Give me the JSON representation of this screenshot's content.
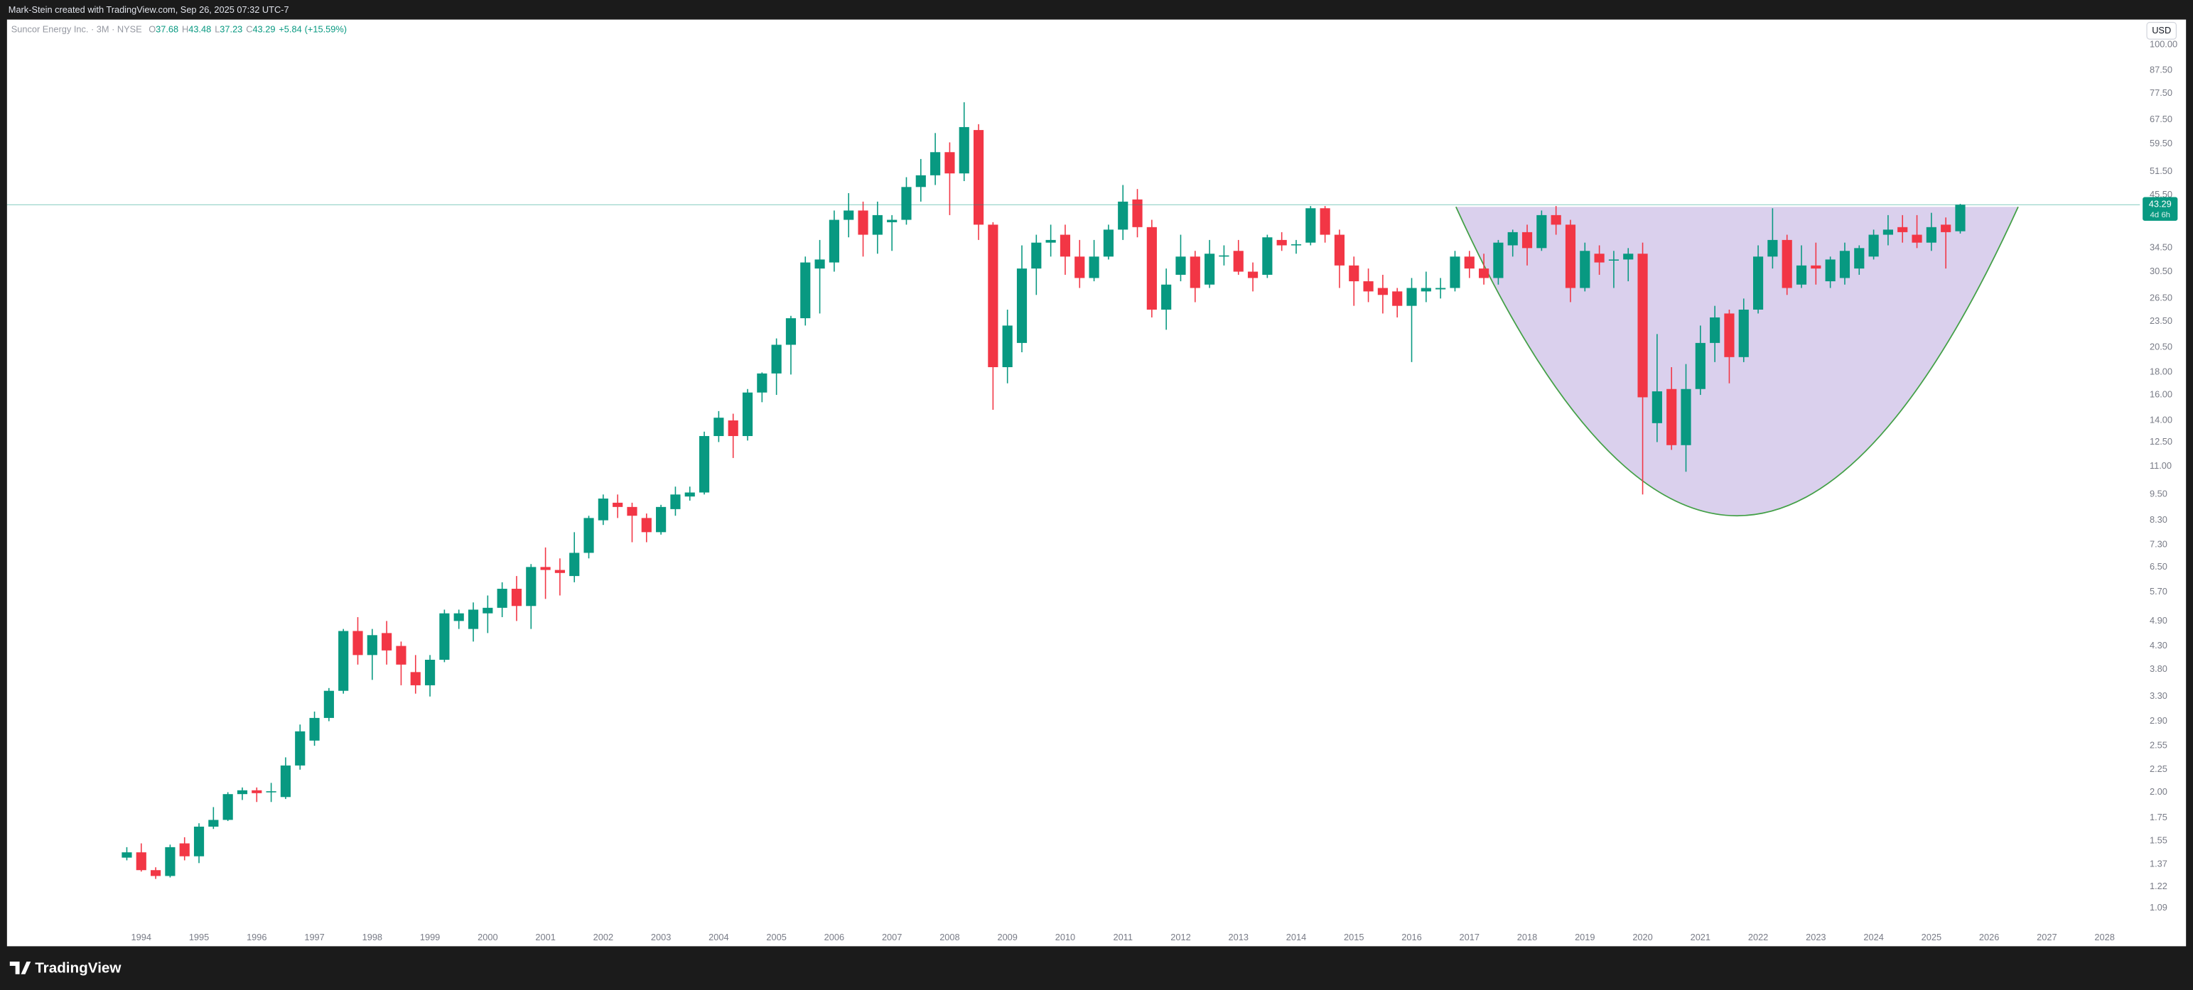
{
  "header": "Mark-Stein created with TradingView.com, Sep 26, 2025 07:32 UTC-7",
  "footer_logo": "TradingView",
  "chart_data": {
    "type": "candlestick",
    "title": "Suncor Energy Inc. · 3M · NYSE",
    "legend_values": [
      {
        "prefix": "O",
        "value": 37.68
      },
      {
        "prefix": "H",
        "value": 43.48
      },
      {
        "prefix": "L",
        "value": 37.23
      },
      {
        "prefix": "C",
        "value": 43.29
      }
    ],
    "change": {
      "value": 5.84,
      "label": "+5.84"
    },
    "change_percent": {
      "value": 15.59,
      "label": "(+15.59%)"
    },
    "currency": "USD",
    "last_price": 43.29,
    "countdown": "4d 6h",
    "up_color": "#089981",
    "down_color": "#f23645",
    "log_scale": true,
    "grid": false,
    "xlim": [
      1991.675,
      2028.61
    ],
    "xticks": [
      1994,
      1995,
      1996,
      1997,
      1998,
      1999,
      2000,
      2001,
      2002,
      2003,
      2004,
      2005,
      2006,
      2007,
      2008,
      2009,
      2010,
      2011,
      2012,
      2013,
      2014,
      2015,
      2016,
      2017,
      2018,
      2019,
      2020,
      2021,
      2022,
      2023,
      2024,
      2025,
      2026,
      2027,
      2028
    ],
    "ylim": [
      0.893,
      114.1
    ],
    "yticks": [
      {
        "value": 100,
        "label": "100.00"
      },
      {
        "value": 87.5,
        "label": "87.50"
      },
      {
        "value": 77.5,
        "label": "77.50"
      },
      {
        "value": 67.5,
        "label": "67.50"
      },
      {
        "value": 59.5,
        "label": "59.50"
      },
      {
        "value": 51.5,
        "label": "51.50"
      },
      {
        "value": 45.5,
        "label": "45.50"
      },
      {
        "value": 34.5,
        "label": "34.50"
      },
      {
        "value": 30.5,
        "label": "30.50"
      },
      {
        "value": 26.5,
        "label": "26.50"
      },
      {
        "value": 23.5,
        "label": "23.50"
      },
      {
        "value": 20.5,
        "label": "20.50"
      },
      {
        "value": 18,
        "label": "18.00"
      },
      {
        "value": 16,
        "label": "16.00"
      },
      {
        "value": 14,
        "label": "14.00"
      },
      {
        "value": 12.5,
        "label": "12.50"
      },
      {
        "value": 11,
        "label": "11.00"
      },
      {
        "value": 9.5,
        "label": "9.50"
      },
      {
        "value": 8.3,
        "label": "8.30"
      },
      {
        "value": 7.3,
        "label": "7.30"
      },
      {
        "value": 6.5,
        "label": "6.50"
      },
      {
        "value": 5.7,
        "label": "5.70"
      },
      {
        "value": 4.9,
        "label": "4.90"
      },
      {
        "value": 4.3,
        "label": "4.30"
      },
      {
        "value": 3.8,
        "label": "3.80"
      },
      {
        "value": 3.3,
        "label": "3.30"
      },
      {
        "value": 2.9,
        "label": "2.90"
      },
      2.55,
      2.25,
      {
        "value": 2,
        "label": "2.00"
      },
      1.75,
      1.55,
      1.37,
      1.22,
      1.09
    ],
    "ohlc": [
      [
        1993.75,
        1.42,
        1.5,
        1.4,
        1.46
      ],
      [
        1994.0,
        1.46,
        1.53,
        1.32,
        1.33
      ],
      [
        1994.25,
        1.33,
        1.35,
        1.27,
        1.29
      ],
      [
        1994.5,
        1.29,
        1.52,
        1.28,
        1.5
      ],
      [
        1994.75,
        1.53,
        1.58,
        1.4,
        1.43
      ],
      [
        1995.0,
        1.43,
        1.7,
        1.38,
        1.67
      ],
      [
        1995.25,
        1.67,
        1.85,
        1.65,
        1.73
      ],
      [
        1995.5,
        1.73,
        2.0,
        1.72,
        1.98
      ],
      [
        1995.75,
        1.98,
        2.05,
        1.92,
        2.02
      ],
      [
        1996.0,
        2.02,
        2.05,
        1.9,
        1.99
      ],
      [
        1996.25,
        2.0,
        2.1,
        1.9,
        2.01
      ],
      [
        1996.5,
        1.95,
        2.4,
        1.93,
        2.3
      ],
      [
        1996.75,
        2.3,
        2.85,
        2.25,
        2.75
      ],
      [
        1997.0,
        2.62,
        3.05,
        2.55,
        2.95
      ],
      [
        1997.25,
        2.95,
        3.45,
        2.9,
        3.4
      ],
      [
        1997.5,
        3.4,
        4.7,
        3.35,
        4.65
      ],
      [
        1997.75,
        4.65,
        5.0,
        3.9,
        4.1
      ],
      [
        1998.0,
        4.1,
        4.7,
        3.6,
        4.55
      ],
      [
        1998.25,
        4.6,
        4.9,
        3.9,
        4.2
      ],
      [
        1998.5,
        4.3,
        4.4,
        3.5,
        3.9
      ],
      [
        1998.75,
        3.75,
        4.1,
        3.35,
        3.5
      ],
      [
        1999.0,
        3.5,
        4.1,
        3.3,
        4.0
      ],
      [
        1999.25,
        4.0,
        5.2,
        3.95,
        5.1
      ],
      [
        1999.5,
        4.9,
        5.2,
        4.7,
        5.1
      ],
      [
        1999.75,
        4.7,
        5.4,
        4.4,
        5.2
      ],
      [
        2000.0,
        5.1,
        5.6,
        4.6,
        5.25
      ],
      [
        2000.25,
        5.25,
        6.0,
        5.0,
        5.8
      ],
      [
        2000.5,
        5.8,
        6.2,
        4.9,
        5.3
      ],
      [
        2000.75,
        5.3,
        6.6,
        4.7,
        6.5
      ],
      [
        2001.0,
        6.5,
        7.2,
        5.5,
        6.4
      ],
      [
        2001.25,
        6.4,
        6.8,
        5.6,
        6.3
      ],
      [
        2001.5,
        6.2,
        7.8,
        6.0,
        7.0
      ],
      [
        2001.75,
        7.0,
        8.5,
        6.8,
        8.4
      ],
      [
        2002.0,
        8.3,
        9.5,
        8.1,
        9.3
      ],
      [
        2002.25,
        9.1,
        9.5,
        8.4,
        8.9
      ],
      [
        2002.5,
        8.9,
        9.1,
        7.4,
        8.5
      ],
      [
        2002.75,
        8.4,
        8.6,
        7.4,
        7.8
      ],
      [
        2003.0,
        7.8,
        9.0,
        7.7,
        8.9
      ],
      [
        2003.25,
        8.8,
        9.9,
        8.5,
        9.5
      ],
      [
        2003.5,
        9.4,
        9.9,
        9.2,
        9.6
      ],
      [
        2003.75,
        9.6,
        13.2,
        9.5,
        12.9
      ],
      [
        2004.0,
        12.9,
        14.7,
        12.5,
        14.2
      ],
      [
        2004.25,
        14.0,
        14.5,
        11.5,
        12.9
      ],
      [
        2004.5,
        12.9,
        16.5,
        12.6,
        16.2
      ],
      [
        2004.75,
        16.2,
        18.0,
        15.4,
        17.9
      ],
      [
        2005.0,
        17.9,
        21.5,
        16.0,
        20.8
      ],
      [
        2005.25,
        20.8,
        24.2,
        17.8,
        23.9
      ],
      [
        2005.5,
        23.9,
        33.0,
        23.0,
        32.0
      ],
      [
        2005.75,
        31.0,
        36.0,
        24.5,
        32.5
      ],
      [
        2006.0,
        32.0,
        42.0,
        30.5,
        40.0
      ],
      [
        2006.25,
        40.0,
        46.0,
        36.5,
        42.0
      ],
      [
        2006.5,
        42.0,
        44.0,
        33.0,
        37.0
      ],
      [
        2006.75,
        37.0,
        44.0,
        33.5,
        41.0
      ],
      [
        2007.0,
        39.5,
        41.0,
        34.0,
        40.0
      ],
      [
        2007.25,
        40.0,
        50.0,
        39.0,
        47.5
      ],
      [
        2007.5,
        47.5,
        55.0,
        44.0,
        50.5
      ],
      [
        2007.75,
        50.5,
        63.0,
        48.0,
        57.0
      ],
      [
        2008.0,
        57.0,
        60.0,
        41.0,
        51.0
      ],
      [
        2008.25,
        51.0,
        74.0,
        49.0,
        65.0
      ],
      [
        2008.5,
        64.0,
        66.0,
        36.0,
        39.0
      ],
      [
        2008.75,
        39.0,
        39.5,
        14.8,
        18.5
      ],
      [
        2009.0,
        18.5,
        25.0,
        17.0,
        23.0
      ],
      [
        2009.25,
        21.0,
        35.0,
        20.0,
        31.0
      ],
      [
        2009.5,
        31.0,
        37.0,
        27.0,
        35.5
      ],
      [
        2009.75,
        35.5,
        39.0,
        33.0,
        36.0
      ],
      [
        2010.0,
        37.0,
        39.0,
        30.0,
        33.0
      ],
      [
        2010.25,
        33.0,
        36.0,
        28.0,
        29.5
      ],
      [
        2010.5,
        29.5,
        36.0,
        29.0,
        33.0
      ],
      [
        2010.75,
        33.0,
        39.0,
        32.5,
        38.0
      ],
      [
        2011.0,
        38.0,
        48.0,
        36.0,
        44.0
      ],
      [
        2011.25,
        44.5,
        47.0,
        36.5,
        38.5
      ],
      [
        2011.5,
        38.5,
        40.0,
        24.0,
        25.0
      ],
      [
        2011.75,
        25.0,
        31.0,
        22.5,
        28.5
      ],
      [
        2012.0,
        30.0,
        37.0,
        29.0,
        33.0
      ],
      [
        2012.25,
        33.0,
        34.0,
        26.0,
        28.0
      ],
      [
        2012.5,
        28.5,
        36.0,
        28.0,
        33.5
      ],
      [
        2012.75,
        33.0,
        35.0,
        31.5,
        33.2
      ],
      [
        2013.0,
        34.0,
        36.0,
        30.0,
        30.5
      ],
      [
        2013.25,
        30.5,
        32.0,
        27.5,
        29.5
      ],
      [
        2013.5,
        30.0,
        37.0,
        29.5,
        36.5
      ],
      [
        2013.75,
        36.0,
        37.5,
        34.0,
        35.0
      ],
      [
        2014.0,
        35.0,
        36.0,
        33.5,
        35.2
      ],
      [
        2014.25,
        35.5,
        43.0,
        35.0,
        42.5
      ],
      [
        2014.5,
        42.5,
        43.0,
        35.5,
        37.0
      ],
      [
        2014.75,
        37.0,
        38.0,
        28.0,
        31.5
      ],
      [
        2015.0,
        31.5,
        33.0,
        25.5,
        29.0
      ],
      [
        2015.25,
        29.0,
        31.0,
        26.0,
        27.5
      ],
      [
        2015.5,
        28.0,
        30.0,
        24.5,
        27.0
      ],
      [
        2015.75,
        27.5,
        28.0,
        24.0,
        25.5
      ],
      [
        2016.0,
        25.5,
        29.5,
        19.0,
        28.0
      ],
      [
        2016.25,
        27.5,
        30.5,
        26.0,
        28.0
      ],
      [
        2016.5,
        27.8,
        29.5,
        26.5,
        28.0
      ],
      [
        2016.75,
        28.0,
        34.0,
        27.5,
        33.0
      ],
      [
        2017.0,
        33.0,
        34.0,
        29.5,
        31.0
      ],
      [
        2017.25,
        31.0,
        33.5,
        28.5,
        29.5
      ],
      [
        2017.5,
        29.5,
        36.0,
        28.5,
        35.5
      ],
      [
        2017.75,
        35.0,
        38.0,
        33.0,
        37.5
      ],
      [
        2018.0,
        37.5,
        39.0,
        31.5,
        34.5
      ],
      [
        2018.25,
        34.5,
        42.0,
        34.0,
        41.0
      ],
      [
        2018.5,
        41.0,
        43.0,
        37.0,
        39.0
      ],
      [
        2018.75,
        39.0,
        40.0,
        26.0,
        28.0
      ],
      [
        2019.0,
        28.0,
        35.5,
        27.5,
        34.0
      ],
      [
        2019.25,
        33.5,
        35.0,
        30.0,
        32.0
      ],
      [
        2019.5,
        32.5,
        34.0,
        28.0,
        32.5
      ],
      [
        2019.75,
        32.5,
        34.5,
        29.0,
        33.5
      ],
      [
        2020.0,
        33.5,
        35.5,
        9.5,
        15.8
      ],
      [
        2020.25,
        13.8,
        22.0,
        12.5,
        16.3
      ],
      [
        2020.5,
        16.5,
        18.5,
        12.0,
        12.3
      ],
      [
        2020.75,
        12.3,
        18.8,
        10.7,
        16.5
      ],
      [
        2021.0,
        16.5,
        23.0,
        16.0,
        21.0
      ],
      [
        2021.25,
        21.0,
        25.5,
        19.0,
        24.0
      ],
      [
        2021.5,
        24.5,
        25.0,
        17.0,
        19.5
      ],
      [
        2021.75,
        19.5,
        26.5,
        19.0,
        25.0
      ],
      [
        2022.0,
        25.0,
        35.0,
        24.5,
        33.0
      ],
      [
        2022.25,
        33.0,
        42.5,
        31.0,
        36.0
      ],
      [
        2022.5,
        36.0,
        37.0,
        27.0,
        28.0
      ],
      [
        2022.75,
        28.5,
        35.0,
        28.0,
        31.5
      ],
      [
        2023.0,
        31.5,
        35.5,
        28.5,
        31.0
      ],
      [
        2023.25,
        29.0,
        33.0,
        28.0,
        32.5
      ],
      [
        2023.5,
        29.5,
        35.5,
        28.5,
        34.0
      ],
      [
        2023.75,
        31.0,
        35.0,
        30.0,
        34.5
      ],
      [
        2024.0,
        33.0,
        38.0,
        32.5,
        37.0
      ],
      [
        2024.25,
        37.0,
        41.0,
        35.0,
        38.0
      ],
      [
        2024.5,
        38.5,
        41.0,
        35.5,
        37.5
      ],
      [
        2024.75,
        37.0,
        41.0,
        34.5,
        35.5
      ],
      [
        2025.0,
        35.5,
        41.5,
        34.0,
        38.5
      ],
      [
        2025.25,
        39.0,
        40.5,
        31.0,
        37.5
      ],
      [
        2025.5,
        37.68,
        43.48,
        37.23,
        43.29
      ]
    ]
  }
}
